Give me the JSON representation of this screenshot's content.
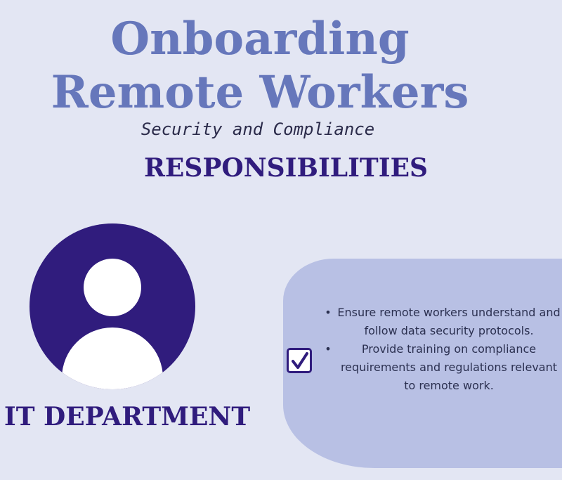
{
  "colors": {
    "background": "#e3e6f3",
    "title": "#6677bb",
    "heading": "#301c7d",
    "avatar": "#301c7d",
    "blob": "#b8c0e4",
    "body_text": "#2b3050"
  },
  "header": {
    "title_line_1": "Onboarding",
    "title_line_2": "Remote Workers",
    "subtitle": "Security and Compliance"
  },
  "section": {
    "heading": "RESPONSIBILITIES"
  },
  "department": {
    "avatar_icon": "person-icon",
    "name": "IT DEPARTMENT"
  },
  "responsibilities": {
    "checkbox_icon": "checkmark-icon",
    "items": [
      {
        "bullet": "•",
        "text": "Ensure remote workers understand and follow data security protocols."
      },
      {
        "bullet": "•",
        "text": "Provide training on compliance requirements and regulations relevant to remote work."
      }
    ]
  }
}
